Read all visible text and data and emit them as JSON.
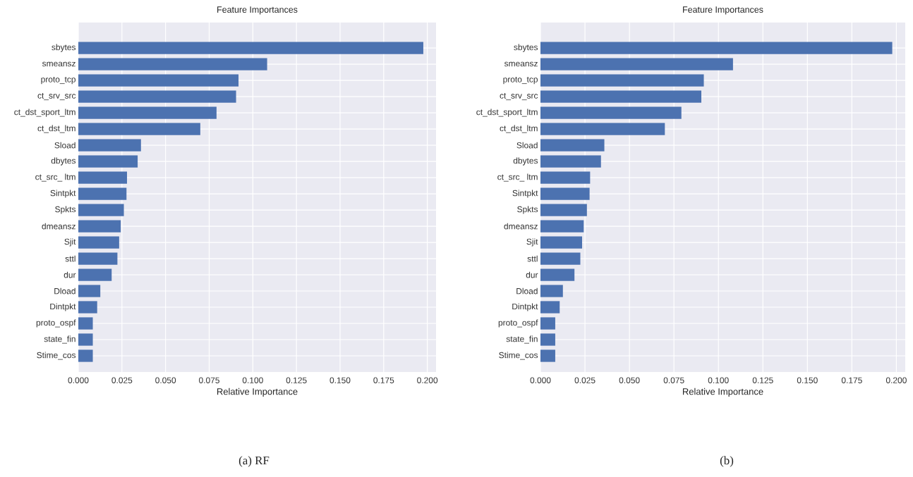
{
  "chart_data": [
    {
      "type": "bar",
      "orientation": "horizontal",
      "title": "Feature Importances",
      "xlabel": "Relative Importance",
      "categories": [
        "sbytes",
        "smeansz",
        "proto_tcp",
        "ct_srv_src",
        "ct_dst_sport_ltm",
        "ct_dst_ltm",
        "Sload",
        "dbytes",
        "ct_src_ ltm",
        "Sintpkt",
        "Spkts",
        "dmeansz",
        "Sjit",
        "sttl",
        "dur",
        "Dload",
        "Dintpkt",
        "proto_ospf",
        "state_fin",
        "Stime_cos"
      ],
      "values": [
        0.1977,
        0.1082,
        0.0918,
        0.0904,
        0.0792,
        0.0699,
        0.0359,
        0.034,
        0.0279,
        0.0276,
        0.0261,
        0.0243,
        0.0234,
        0.0224,
        0.0191,
        0.0126,
        0.0108,
        0.0083,
        0.0083,
        0.0083
      ],
      "color": "#4c72b0",
      "xlim": [
        0,
        0.205
      ],
      "xticks": [
        {
          "value": 0,
          "label": "0.000"
        },
        {
          "value": 0.025,
          "label": "0.025"
        },
        {
          "value": 0.05,
          "label": "0.050"
        },
        {
          "value": 0.075,
          "label": "0.075"
        },
        {
          "value": 0.1,
          "label": "0.100"
        },
        {
          "value": 0.125,
          "label": "0.125"
        },
        {
          "value": 0.15,
          "label": "0.150"
        },
        {
          "value": 0.175,
          "label": "0.175"
        },
        {
          "value": 0.2,
          "label": "0.200"
        }
      ],
      "grid": true,
      "annotations": [
        "(a) RF"
      ]
    },
    {
      "type": "bar",
      "orientation": "horizontal",
      "title": "Feature Importances",
      "xlabel": "Relative Importance",
      "categories": [
        "sbytes",
        "smeansz",
        "proto_tcp",
        "ct_srv_src",
        "ct_dst_sport_ltm",
        "ct_dst_ltm",
        "Sload",
        "dbytes",
        "ct_src_ ltm",
        "Sintpkt",
        "Spkts",
        "dmeansz",
        "Sjit",
        "sttl",
        "dur",
        "Dload",
        "Dintpkt",
        "proto_ospf",
        "state_fin",
        "Stime_cos"
      ],
      "values": [
        0.1977,
        0.1082,
        0.0918,
        0.0904,
        0.0792,
        0.0699,
        0.0359,
        0.034,
        0.0279,
        0.0276,
        0.0261,
        0.0243,
        0.0234,
        0.0224,
        0.0191,
        0.0126,
        0.0108,
        0.0083,
        0.0083,
        0.0083
      ],
      "color": "#4c72b0",
      "xlim": [
        0,
        0.205
      ],
      "xticks": [
        {
          "value": 0,
          "label": "0.000"
        },
        {
          "value": 0.025,
          "label": "0.025"
        },
        {
          "value": 0.05,
          "label": "0.050"
        },
        {
          "value": 0.075,
          "label": "0.075"
        },
        {
          "value": 0.1,
          "label": "0.100"
        },
        {
          "value": 0.125,
          "label": "0.125"
        },
        {
          "value": 0.15,
          "label": "0.150"
        },
        {
          "value": 0.175,
          "label": "0.175"
        },
        {
          "value": 0.2,
          "label": "0.200"
        }
      ],
      "grid": true,
      "annotations": [
        "(b)"
      ]
    }
  ]
}
